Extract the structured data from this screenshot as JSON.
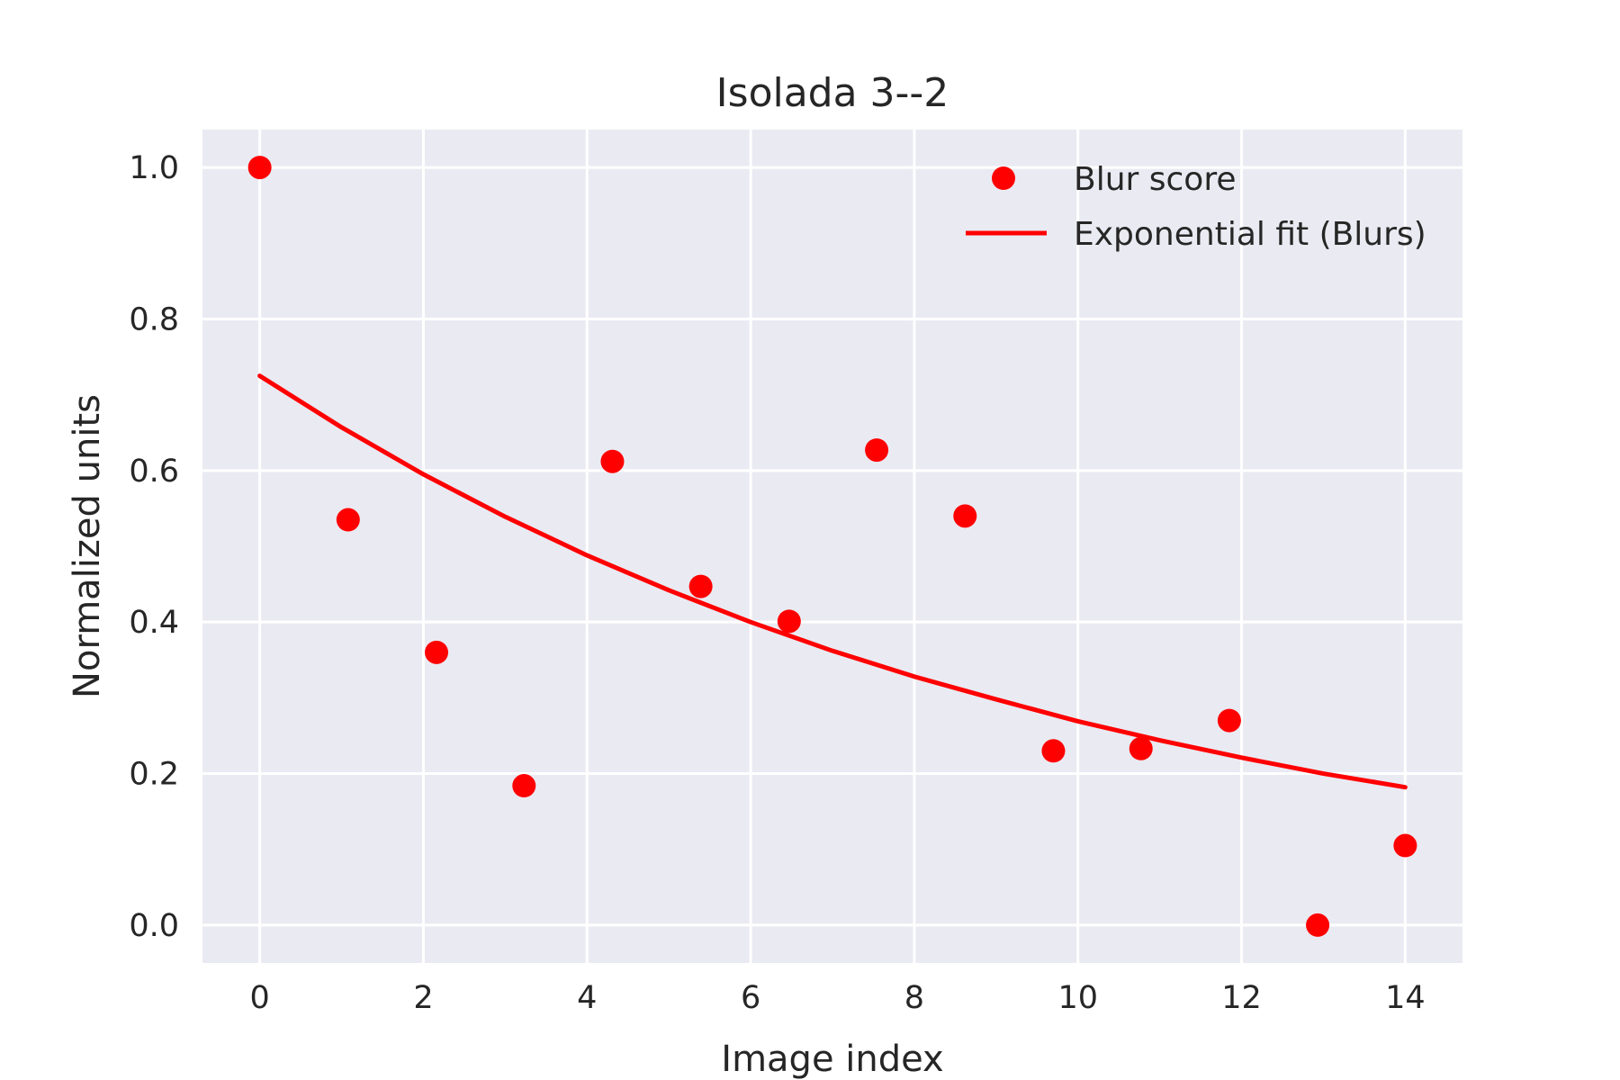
{
  "colors": {
    "plot_background": "#eaeaf2",
    "grid": "#ffffff",
    "series": "#ff0000",
    "text": "#262626"
  },
  "chart_data": {
    "type": "scatter",
    "title": "Isolada 3--2",
    "xlabel": "Image index",
    "ylabel": "Normalized units",
    "xlim": [
      -0.7,
      14.7
    ],
    "ylim": [
      -0.05,
      1.05
    ],
    "xticks": [
      0,
      2,
      4,
      6,
      8,
      10,
      12,
      14
    ],
    "xtick_labels": [
      "0",
      "2",
      "4",
      "6",
      "8",
      "10",
      "12",
      "14"
    ],
    "yticks": [
      0.0,
      0.2,
      0.4,
      0.6,
      0.8,
      1.0
    ],
    "ytick_labels": [
      "0.0",
      "0.2",
      "0.4",
      "0.6",
      "0.8",
      "1.0"
    ],
    "grid": true,
    "legend_position": "top-right",
    "series": [
      {
        "name": "Blur score",
        "kind": "scatter",
        "x": [
          0.0,
          1.08,
          2.16,
          3.23,
          4.31,
          5.39,
          6.47,
          7.54,
          8.62,
          9.7,
          10.77,
          11.85,
          12.93,
          14.0
        ],
        "y": [
          1.0,
          0.535,
          0.36,
          0.184,
          0.612,
          0.447,
          0.401,
          0.627,
          0.54,
          0.23,
          0.233,
          0.27,
          0.0,
          0.105
        ]
      },
      {
        "name": "Exponential fit (Blurs)",
        "kind": "line",
        "model": "y = 0.725 * exp(-0.0989 * x)",
        "x": [
          0.0,
          1.0,
          2.0,
          3.0,
          4.0,
          5.0,
          6.0,
          7.0,
          8.0,
          9.0,
          10.0,
          11.0,
          12.0,
          13.0,
          14.0
        ],
        "y": [
          0.725,
          0.657,
          0.595,
          0.539,
          0.488,
          0.442,
          0.4,
          0.362,
          0.328,
          0.298,
          0.269,
          0.244,
          0.221,
          0.2,
          0.182
        ]
      }
    ]
  }
}
